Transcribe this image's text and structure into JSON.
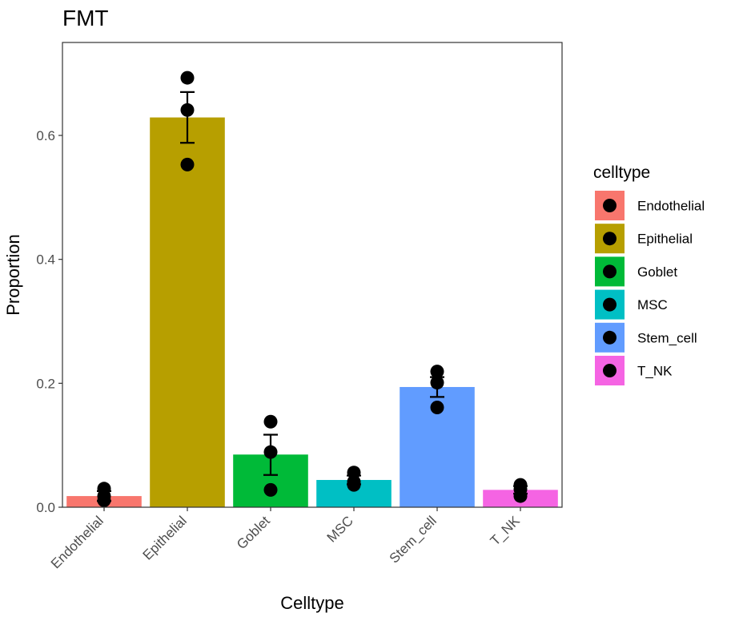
{
  "chart_data": {
    "type": "bar",
    "title": "FMT",
    "xlabel": "Celltype",
    "ylabel": "Proportion",
    "ylim": [
      0,
      0.75
    ],
    "yticks": [
      "0.0",
      "0.2",
      "0.4",
      "0.6"
    ],
    "categories": [
      "Endothelial",
      "Epithelial",
      "Goblet",
      "MSC",
      "Stem_cell",
      "T_NK"
    ],
    "values": [
      0.018,
      0.629,
      0.085,
      0.044,
      0.194,
      0.028
    ],
    "error": [
      {
        "low": 0.01,
        "high": 0.026
      },
      {
        "low": 0.588,
        "high": 0.67
      },
      {
        "low": 0.052,
        "high": 0.117
      },
      {
        "low": 0.037,
        "high": 0.051
      },
      {
        "low": 0.178,
        "high": 0.21
      },
      {
        "low": 0.022,
        "high": 0.034
      }
    ],
    "points": [
      [
        0.011,
        0.018,
        0.03
      ],
      [
        0.553,
        0.641,
        0.693
      ],
      [
        0.028,
        0.089,
        0.138
      ],
      [
        0.036,
        0.041,
        0.056
      ],
      [
        0.161,
        0.201,
        0.219
      ],
      [
        0.018,
        0.029,
        0.036
      ]
    ],
    "colors": [
      "#F8766D",
      "#B79F00",
      "#00BA38",
      "#00BFC4",
      "#619CFF",
      "#F564E3"
    ],
    "legend": {
      "title": "celltype",
      "position": "right",
      "entries": [
        "Endothelial",
        "Epithelial",
        "Goblet",
        "MSC",
        "Stem_cell",
        "T_NK"
      ]
    },
    "grid": false
  }
}
